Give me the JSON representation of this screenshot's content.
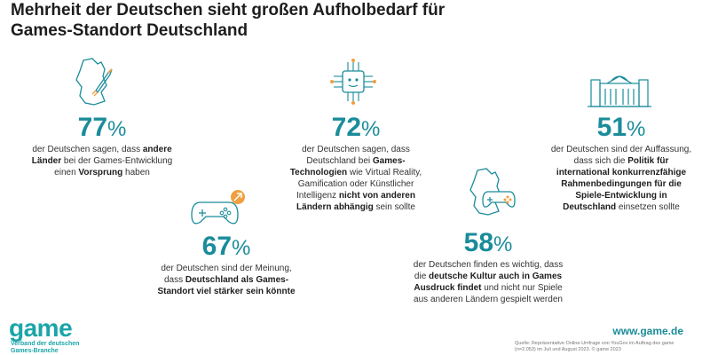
{
  "title": "Mehrheit der Deutschen sieht großen Aufholbedarf für Games-Standort Deutschland",
  "chart_data": {
    "type": "table",
    "title": "Mehrheit der Deutschen sieht großen Aufholbedarf für Games-Standort Deutschland",
    "unit": "%",
    "items": [
      {
        "value": 77,
        "pre": "der Deutschen sagen, dass ",
        "bold": "andere Länder",
        "mid": " bei der Games-Entwicklung einen ",
        "bold2": "Vorsprung",
        "post": " haben"
      },
      {
        "value": 72,
        "pre": "der Deutschen sagen, dass Deutschland bei ",
        "bold": "Games-Technologien",
        "mid": " wie Virtual Reality, Gamification oder Künstlicher Intelligenz ",
        "bold2": "nicht von anderen Ländern abhängig",
        "post": " sein sollte"
      },
      {
        "value": 51,
        "pre": "der Deutschen sind der Auffassung, dass sich die ",
        "bold": "Politik für international konkurrenzfähige Rahmenbedingungen für die Spiele-Entwicklung in Deutschland",
        "mid": "",
        "bold2": "",
        "post": " einsetzen sollte"
      },
      {
        "value": 67,
        "pre": "der Deutschen sind der Meinung, dass ",
        "bold": "Deutschland als Games-Standort viel stärker sein könnte",
        "mid": "",
        "bold2": "",
        "post": ""
      },
      {
        "value": 58,
        "pre": "der Deutschen finden es wichtig, dass die ",
        "bold": "deutsche Kultur auch in Games Ausdruck findet",
        "mid": " und nicht nur Spiele aus anderen Ländern gespielt werden",
        "bold2": "",
        "post": ""
      }
    ]
  },
  "logo": {
    "word": "game",
    "line1": "Verband der deutschen",
    "line2": "Games-Branche"
  },
  "url": "www.game.de",
  "source": {
    "line1": "Quelle: Repräsentative Online-Umfrage von YouGov im Auftrag des game",
    "line2": "(n=2.053) im Juli und August 2023. © game 2023"
  },
  "colors": {
    "accent": "#1a8c9a",
    "brand": "#1aa5a8",
    "orange": "#f0a040"
  }
}
